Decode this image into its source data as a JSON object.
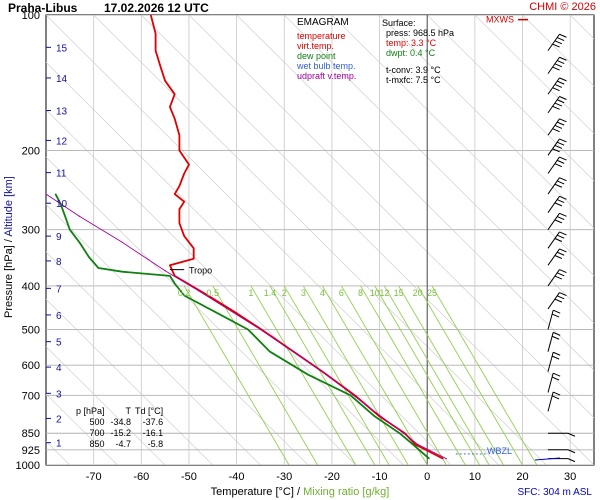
{
  "header": {
    "station": "Praha-Libus",
    "date": "17.02.2026 12 UTC",
    "copyright": "CHMI © 2026"
  },
  "legend": {
    "title": "EMAGRAM",
    "items": [
      {
        "label": "temperature",
        "color": "#e00000"
      },
      {
        "label": "virt.temp.",
        "color": "#e00000"
      },
      {
        "label": "dew point",
        "color": "#108010"
      },
      {
        "label": "wet bulb temp.",
        "color": "#3060d0"
      },
      {
        "label": "udpraft v.temp.",
        "color": "#a000a0"
      }
    ]
  },
  "surface": {
    "title": "Surface:",
    "press": "press: 968.5 hPa",
    "temp": "temp: 3.3 °C",
    "dwpt": "dwpt: 0.4 °C",
    "tconv": "t-conv: 3.9 °C",
    "tmxfc": "t-mxfc: 7.5 °C"
  },
  "table": {
    "headers": [
      "p [hPa]",
      "T",
      "Td [°C]"
    ],
    "rows": [
      [
        "500",
        "-34.8",
        "-37.6"
      ],
      [
        "700",
        "-15.2",
        "-16.1"
      ],
      [
        "850",
        "-4.7",
        "-5.8"
      ]
    ]
  },
  "labels": {
    "tropo": "Tropo",
    "mxws": "MXWS",
    "wbzl": "WBZL",
    "sfc": "SFC: 304 m ASL",
    "xlabel_temp": "Temperature [°C]",
    "xlabel_sep": " / ",
    "xlabel_mix": "Mixing ratio [g/kg]",
    "ylabel_p": "Pressure [hPa]",
    "ylabel_sep": " / ",
    "ylabel_alt": "Altitude [km]"
  },
  "colors": {
    "temperature": "#e00000",
    "dewpoint": "#108010",
    "wetbulb": "#3060d0",
    "updraft": "#a000a0",
    "mixing": "#90d050",
    "altitude": "#1010a0",
    "grid": "#b0b0b0",
    "isotherm": "#999999"
  },
  "chart_data": {
    "type": "line",
    "xlim": [
      -80,
      35
    ],
    "ylim": [
      1000,
      100
    ],
    "y_scale": "log",
    "pressure_ticks": [
      100,
      200,
      300,
      400,
      500,
      600,
      700,
      850,
      925,
      1000
    ],
    "temperature_ticks": [
      -70,
      -60,
      -50,
      -40,
      -30,
      -20,
      -10,
      0,
      10,
      20,
      30
    ],
    "altitude_ticks": [
      {
        "km": "1",
        "p": 892
      },
      {
        "km": "2",
        "p": 788
      },
      {
        "km": "3",
        "p": 693
      },
      {
        "km": "4",
        "p": 606
      },
      {
        "km": "5",
        "p": 532
      },
      {
        "km": "6",
        "p": 464
      },
      {
        "km": "7",
        "p": 405
      },
      {
        "km": "8",
        "p": 352
      },
      {
        "km": "9",
        "p": 310
      },
      {
        "km": "10",
        "p": 262
      },
      {
        "km": "11",
        "p": 224
      },
      {
        "km": "12",
        "p": 190
      },
      {
        "km": "13",
        "p": 163
      },
      {
        "km": "14",
        "p": 138
      },
      {
        "km": "15",
        "p": 118
      }
    ],
    "mixing_ratio_lines": [
      {
        "label": "0.2",
        "value": 0.2,
        "t_at_400": -51
      },
      {
        "label": "0.5",
        "value": 0.5,
        "t_at_400": -45
      },
      {
        "label": "1",
        "value": 1,
        "t_at_400": -37
      },
      {
        "label": "1.4",
        "value": 1.4,
        "t_at_400": -33
      },
      {
        "label": "2",
        "value": 2,
        "t_at_400": -30
      },
      {
        "label": "3",
        "value": 3,
        "t_at_400": -26
      },
      {
        "label": "4",
        "value": 4,
        "t_at_400": -22
      },
      {
        "label": "6",
        "value": 6,
        "t_at_400": -18
      },
      {
        "label": "8",
        "value": 8,
        "t_at_400": -14
      },
      {
        "label": "10",
        "value": 10,
        "t_at_400": -11
      },
      {
        "label": "12",
        "value": 12,
        "t_at_400": -9
      },
      {
        "label": "15",
        "value": 15,
        "t_at_400": -6
      },
      {
        "label": "20",
        "value": 20,
        "t_at_400": -2
      },
      {
        "label": "25",
        "value": 25,
        "t_at_400": 1
      }
    ],
    "series": [
      {
        "name": "temperature",
        "points": [
          [
            3.3,
            968
          ],
          [
            -2.5,
            900
          ],
          [
            -4.7,
            850
          ],
          [
            -10,
            780
          ],
          [
            -15.2,
            700
          ],
          [
            -22,
            620
          ],
          [
            -27,
            570
          ],
          [
            -34.8,
            500
          ],
          [
            -40,
            460
          ],
          [
            -46,
            420
          ],
          [
            -53,
            380
          ],
          [
            -54,
            360
          ],
          [
            -49,
            348
          ],
          [
            -49,
            330
          ],
          [
            -51,
            310
          ],
          [
            -52,
            290
          ],
          [
            -52,
            270
          ],
          [
            -51,
            260
          ],
          [
            -53,
            250
          ],
          [
            -52,
            240
          ],
          [
            -51,
            225
          ],
          [
            -50,
            215
          ],
          [
            -52,
            200
          ],
          [
            -52,
            185
          ],
          [
            -53,
            170
          ],
          [
            -54,
            160
          ],
          [
            -53,
            150
          ],
          [
            -55,
            140
          ],
          [
            -56,
            130
          ],
          [
            -57,
            120
          ],
          [
            -57,
            110
          ],
          [
            -58,
            100
          ]
        ]
      },
      {
        "name": "dew point",
        "points": [
          [
            0.4,
            968
          ],
          [
            -3,
            900
          ],
          [
            -5.8,
            850
          ],
          [
            -11,
            780
          ],
          [
            -16.1,
            700
          ],
          [
            -25,
            630
          ],
          [
            -33,
            560
          ],
          [
            -37.6,
            500
          ],
          [
            -44,
            460
          ],
          [
            -51,
            420
          ],
          [
            -53,
            395
          ],
          [
            -54,
            380
          ],
          [
            -64,
            372
          ],
          [
            -69,
            365
          ],
          [
            -71,
            345
          ],
          [
            -73,
            320
          ],
          [
            -75,
            300
          ],
          [
            -76,
            280
          ],
          [
            -77,
            262
          ],
          [
            -78,
            250
          ]
        ]
      },
      {
        "name": "udpraft v.temp.",
        "points": [
          [
            4,
            968
          ],
          [
            -2,
            900
          ],
          [
            -5,
            850
          ],
          [
            -14,
            720
          ],
          [
            -22,
            620
          ],
          [
            -35,
            500
          ],
          [
            -48,
            410
          ],
          [
            -55,
            370
          ],
          [
            -64,
            320
          ],
          [
            -73,
            280
          ],
          [
            -80,
            250
          ]
        ]
      }
    ]
  }
}
